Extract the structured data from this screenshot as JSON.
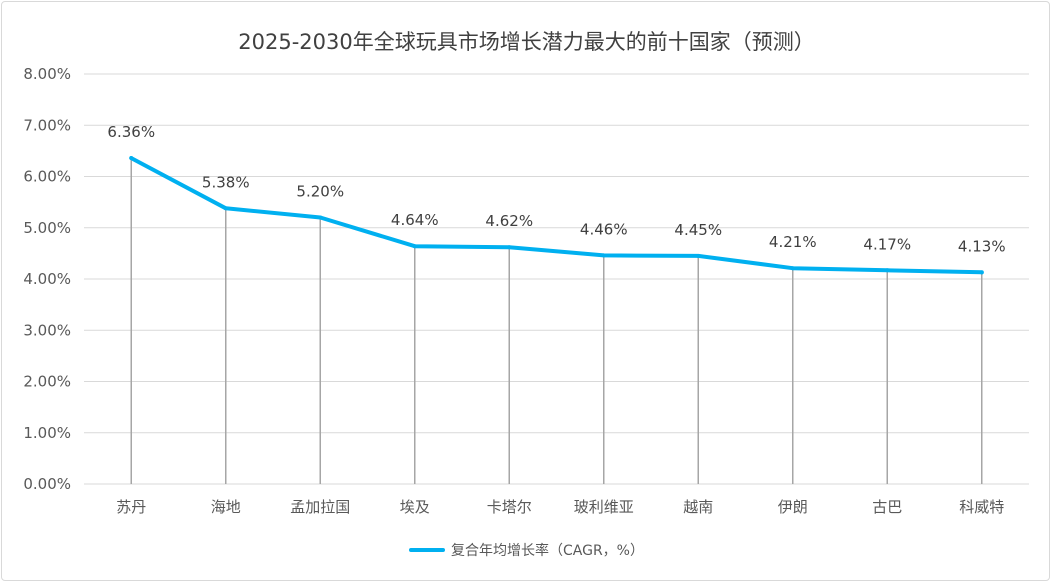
{
  "chart_data": {
    "type": "line",
    "title": "2025-2030年全球玩具市场增长潜力最大的前十国家（预测）",
    "categories": [
      "苏丹",
      "海地",
      "孟加拉国",
      "埃及",
      "卡塔尔",
      "玻利维亚",
      "越南",
      "伊朗",
      "古巴",
      "科威特"
    ],
    "series": [
      {
        "name": "复合年均增长率（CAGR，%）",
        "values": [
          6.36,
          5.38,
          5.2,
          4.64,
          4.62,
          4.46,
          4.45,
          4.21,
          4.17,
          4.13
        ],
        "data_labels": [
          "6.36%",
          "5.38%",
          "5.20%",
          "4.64%",
          "4.62%",
          "4.46%",
          "4.45%",
          "4.21%",
          "4.17%",
          "4.13%"
        ],
        "color": "#00b0f0"
      }
    ],
    "yticks": [
      "0.00%",
      "1.00%",
      "2.00%",
      "3.00%",
      "4.00%",
      "5.00%",
      "6.00%",
      "7.00%",
      "8.00%"
    ],
    "ylim": [
      0,
      8
    ],
    "grid": true,
    "drop_lines": true,
    "legend_position": "bottom"
  }
}
